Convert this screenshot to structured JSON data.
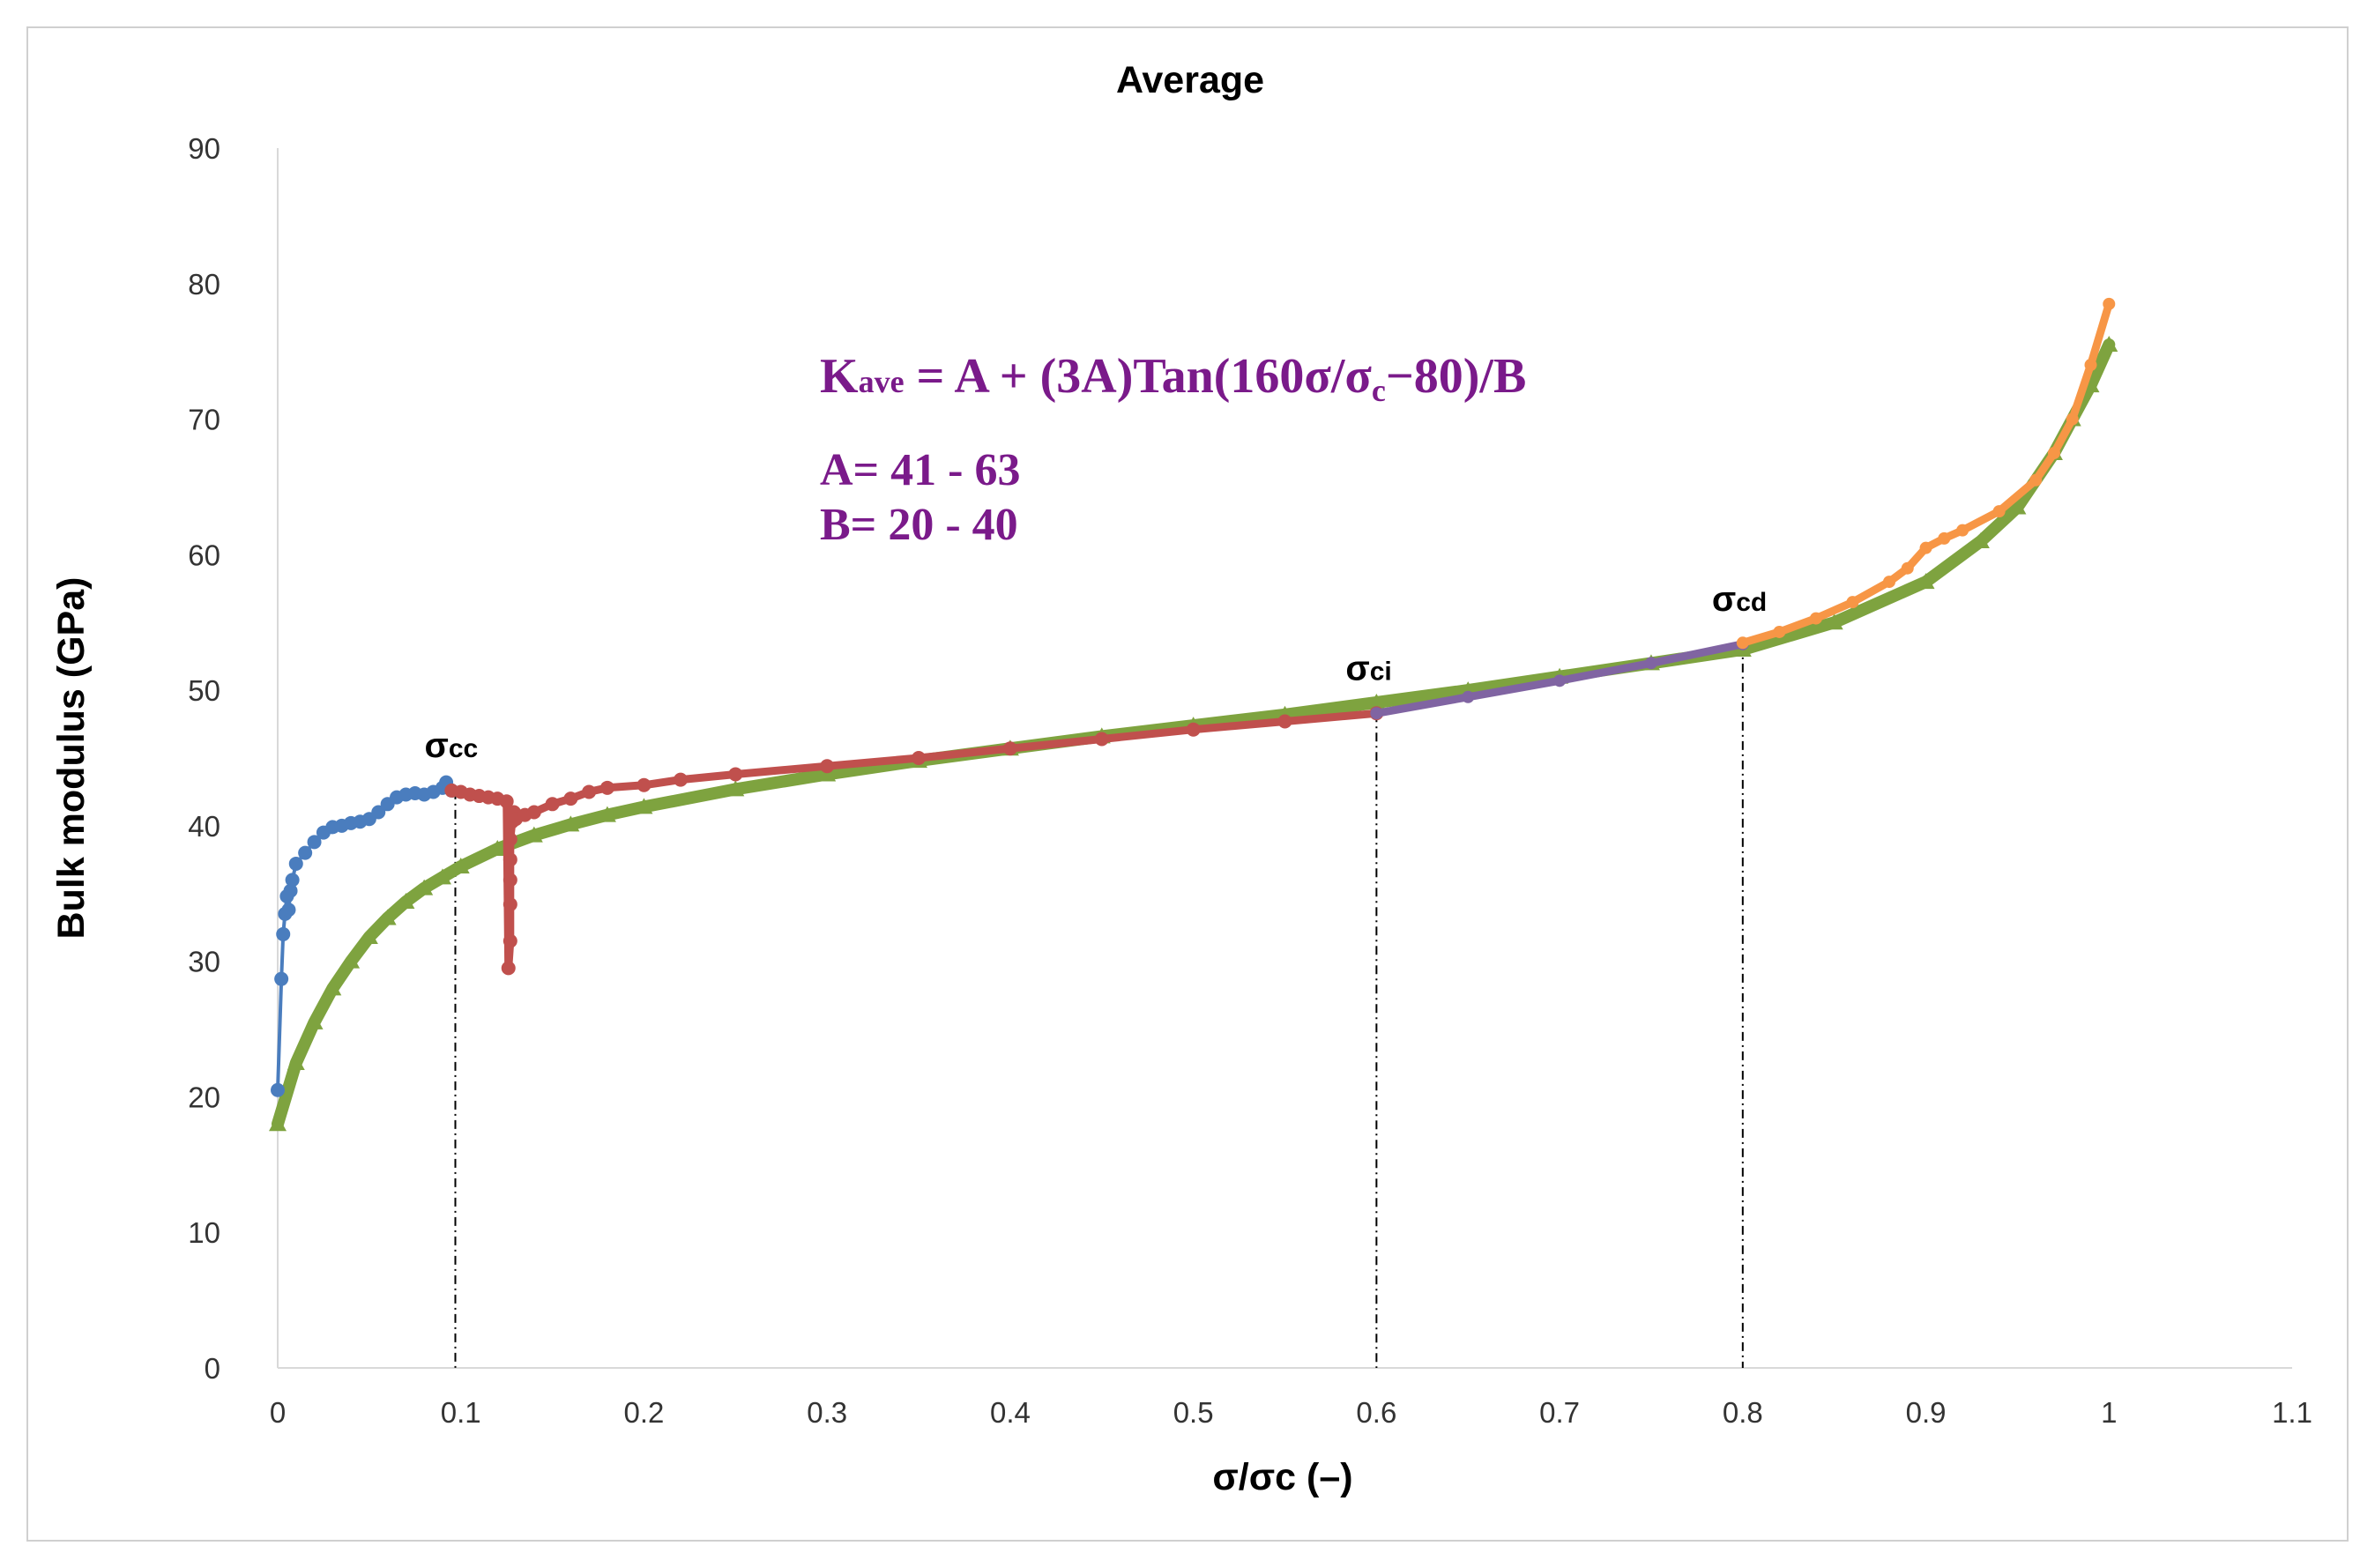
{
  "chart_data": {
    "type": "line",
    "title": "Average",
    "xlabel": "σ/σc (–)",
    "ylabel": "Bulk modulus (GPa)",
    "xlim": [
      0,
      1.1
    ],
    "ylim": [
      0,
      90
    ],
    "x_ticks": [
      "0",
      "0.1",
      "0.2",
      "0.3",
      "0.4",
      "0.5",
      "0.6",
      "0.7",
      "0.8",
      "0.9",
      "1",
      "1.1"
    ],
    "y_ticks": [
      "0",
      "10",
      "20",
      "30",
      "40",
      "50",
      "60",
      "70",
      "80",
      "90"
    ],
    "grid": false,
    "legend": "none",
    "colors": {
      "blue": "#4a7dbe",
      "red": "#c0504d",
      "green": "#7ea33f",
      "purple": "#8064a2",
      "orange": "#f79646",
      "equation": "#7a1a8a"
    },
    "series": [
      {
        "color": "blue",
        "marker": "circle",
        "x": [
          0.0,
          0.002,
          0.003,
          0.004,
          0.005,
          0.006,
          0.007,
          0.008,
          0.01,
          0.015,
          0.02,
          0.025,
          0.03,
          0.035,
          0.04,
          0.045,
          0.05,
          0.055,
          0.06,
          0.065,
          0.07,
          0.075,
          0.08,
          0.085,
          0.09,
          0.092,
          0.095
        ],
        "y": [
          20.5,
          28.7,
          32.0,
          33.5,
          34.8,
          33.8,
          35.2,
          36.0,
          37.2,
          38.0,
          38.8,
          39.5,
          39.9,
          40.0,
          40.2,
          40.3,
          40.5,
          41.0,
          41.6,
          42.1,
          42.3,
          42.4,
          42.3,
          42.5,
          42.8,
          43.2,
          42.6
        ]
      },
      {
        "color": "red",
        "marker": "circle",
        "x": [
          0.095,
          0.1,
          0.105,
          0.11,
          0.115,
          0.12,
          0.125,
          0.126,
          0.127,
          0.127,
          0.127,
          0.127,
          0.127,
          0.128,
          0.129,
          0.13,
          0.135,
          0.14,
          0.15,
          0.16,
          0.17,
          0.18,
          0.2,
          0.22,
          0.25,
          0.3,
          0.35,
          0.4,
          0.45,
          0.5,
          0.55,
          0.6
        ],
        "y": [
          42.6,
          42.5,
          42.3,
          42.2,
          42.1,
          42.0,
          41.8,
          29.5,
          31.5,
          34.2,
          36.0,
          37.5,
          39.0,
          40.3,
          41.0,
          40.5,
          40.8,
          41.0,
          41.6,
          42.0,
          42.5,
          42.8,
          43.0,
          43.4,
          43.8,
          44.4,
          45.0,
          45.7,
          46.4,
          47.1,
          47.7,
          48.3
        ]
      },
      {
        "color": "green",
        "marker": "triangle",
        "x": [
          0.0,
          0.01,
          0.02,
          0.03,
          0.04,
          0.05,
          0.06,
          0.07,
          0.08,
          0.09,
          0.1,
          0.12,
          0.14,
          0.16,
          0.18,
          0.2,
          0.25,
          0.3,
          0.35,
          0.4,
          0.45,
          0.5,
          0.55,
          0.6,
          0.65,
          0.7,
          0.75,
          0.8,
          0.85,
          0.9,
          0.93,
          0.95,
          0.97,
          0.98,
          0.99,
          1.0
        ],
        "y": [
          18.0,
          22.5,
          25.5,
          28.0,
          30.0,
          31.8,
          33.2,
          34.4,
          35.4,
          36.2,
          37.0,
          38.3,
          39.3,
          40.1,
          40.8,
          41.4,
          42.7,
          43.8,
          44.8,
          45.7,
          46.6,
          47.4,
          48.2,
          49.1,
          50.0,
          51.0,
          52.0,
          53.0,
          55.0,
          58.0,
          61.0,
          63.5,
          67.5,
          70.0,
          72.5,
          75.5
        ]
      },
      {
        "color": "purple",
        "marker": "circle",
        "x": [
          0.6,
          0.65,
          0.7,
          0.75,
          0.8
        ],
        "y": [
          48.3,
          49.5,
          50.7,
          52.0,
          53.4
        ]
      },
      {
        "color": "orange",
        "marker": "circle",
        "x": [
          0.8,
          0.82,
          0.84,
          0.86,
          0.88,
          0.89,
          0.9,
          0.91,
          0.92,
          0.94,
          0.96,
          0.97,
          0.98,
          0.99,
          1.0
        ],
        "y": [
          53.5,
          54.3,
          55.3,
          56.5,
          58.0,
          59.0,
          60.5,
          61.2,
          61.8,
          63.2,
          65.5,
          67.5,
          70.0,
          74.0,
          78.5
        ]
      }
    ],
    "vlines": [
      {
        "x": 0.097,
        "label": "σ",
        "sub": "cc",
        "y_top": 42.6
      },
      {
        "x": 0.6,
        "label": "σ",
        "sub": "ci",
        "y_top": 48.3
      },
      {
        "x": 0.8,
        "label": "σ",
        "sub": "cd",
        "y_top": 53.4
      }
    ],
    "annotation": {
      "equation_main": "K",
      "equation_sub": "ave",
      "equation_rest_1": " = A + (3A)Tan(160σ/σ",
      "equation_sub_c": "c",
      "equation_rest_2": "−80)/B",
      "line_a": "A= 41 - 63",
      "line_b": "B= 20 - 40"
    }
  }
}
